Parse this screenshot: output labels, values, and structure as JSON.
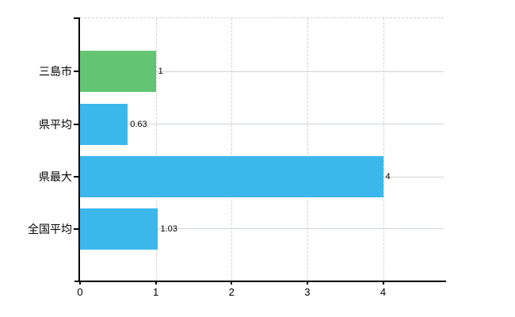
{
  "chart": {
    "background_color": "#ffffff",
    "axis_color": "#000000",
    "grid_color": "#d4d4d4",
    "text_color": "#000000",
    "highlight_bar_color": "#63c574",
    "default_bar_color": "#3cb7ec"
  },
  "chart_data": {
    "type": "bar",
    "orientation": "horizontal",
    "title": "",
    "subtitle": "",
    "xlabel": "",
    "ylabel": "",
    "categories": [
      "三島市",
      "県平均",
      "県最大",
      "全国平均"
    ],
    "series": [
      {
        "name": "",
        "values": [
          1,
          0.63,
          4,
          1.03
        ],
        "value_labels": [
          "1",
          "0.63",
          "4",
          "1.03"
        ],
        "bar_colors": [
          "#63c574",
          "#3cb7ec",
          "#3cb7ec",
          "#3cb7ec"
        ]
      }
    ],
    "xlim": [
      0,
      4.8
    ],
    "xtick_labels": [
      "0",
      "1",
      "2",
      "3",
      "4"
    ],
    "xtick_values": [
      0,
      1,
      2,
      3,
      4
    ],
    "grid": {
      "vertical_gridlines": "dashed, at x = 1..4",
      "horizontal_gridlines": "solid, at category centers",
      "top_border": "dashed"
    },
    "legend": "none"
  }
}
